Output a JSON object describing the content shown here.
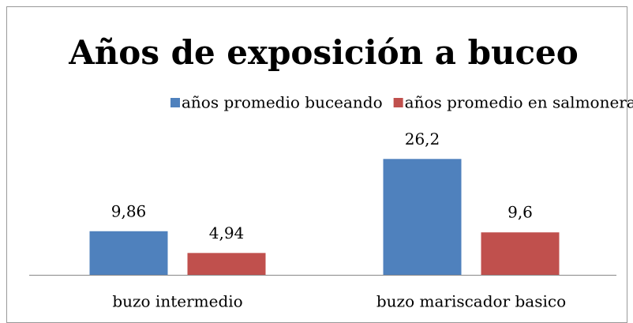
{
  "chart_data": {
    "type": "bar",
    "title": "Años de exposición a buceo",
    "categories": [
      "buzo intermedio",
      "buzo mariscador basico"
    ],
    "series": [
      {
        "name": "años promedio buceando",
        "color": "#4f81bd",
        "values": [
          9.86,
          26.2
        ],
        "value_labels": [
          "9,86",
          "26,2"
        ]
      },
      {
        "name": "años promedio en salmonera",
        "color": "#c0504d",
        "values": [
          4.94,
          9.6
        ],
        "value_labels": [
          "4,94",
          "9,6"
        ]
      }
    ],
    "ylim": [
      0,
      30
    ],
    "legend": "top"
  }
}
